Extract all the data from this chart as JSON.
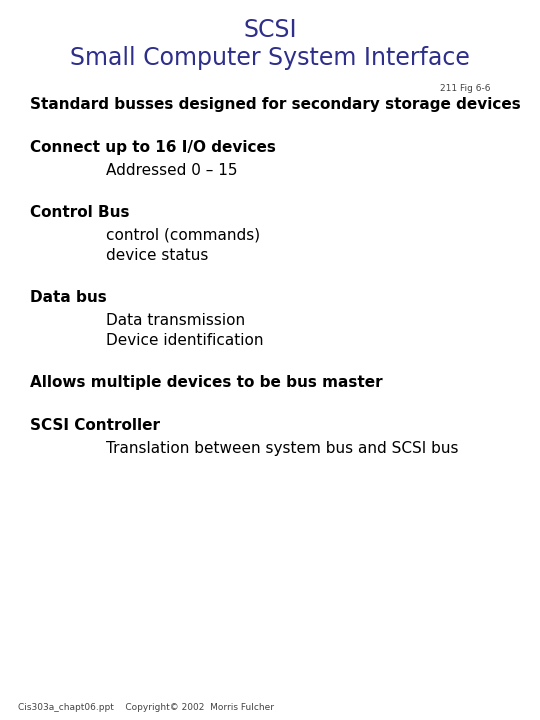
{
  "title_line1": "SCSI",
  "title_line2": "Small Computer System Interface",
  "title_color": "#2E2E8B",
  "title_fontsize": 17,
  "title_fontsize2": 17,
  "fig_ref": "211 Fig 6-6",
  "fig_ref_fontsize": 6.5,
  "fig_ref_color": "#444444",
  "background_color": "#FFFFFF",
  "body_color": "#000000",
  "body_fontsize": 11,
  "footer_text": "Cis303a_chapt06.ppt    Copyright© 2002  Morris Fulcher",
  "footer_fontsize": 6.5,
  "footer_color": "#444444",
  "lines": [
    {
      "text": "Standard busses designed for secondary storage devices",
      "indent": 0.0,
      "size": 11,
      "bold": true
    },
    {
      "text": "",
      "indent": 0.0,
      "size": 11,
      "bold": false
    },
    {
      "text": "Connect up to 16 I/O devices",
      "indent": 0.0,
      "size": 11,
      "bold": true
    },
    {
      "text": "Addressed 0 – 15",
      "indent": 0.14,
      "size": 11,
      "bold": false
    },
    {
      "text": "",
      "indent": 0.0,
      "size": 11,
      "bold": false
    },
    {
      "text": "Control Bus",
      "indent": 0.0,
      "size": 11,
      "bold": true
    },
    {
      "text": "control (commands)",
      "indent": 0.14,
      "size": 11,
      "bold": false
    },
    {
      "text": "device status",
      "indent": 0.14,
      "size": 11,
      "bold": false
    },
    {
      "text": "",
      "indent": 0.0,
      "size": 11,
      "bold": false
    },
    {
      "text": "Data bus",
      "indent": 0.0,
      "size": 11,
      "bold": true
    },
    {
      "text": "Data transmission",
      "indent": 0.14,
      "size": 11,
      "bold": false
    },
    {
      "text": "Device identification",
      "indent": 0.14,
      "size": 11,
      "bold": false
    },
    {
      "text": "",
      "indent": 0.0,
      "size": 11,
      "bold": false
    },
    {
      "text": "Allows multiple devices to be bus master",
      "indent": 0.0,
      "size": 11,
      "bold": true
    },
    {
      "text": "",
      "indent": 0.0,
      "size": 11,
      "bold": false
    },
    {
      "text": "SCSI Controller",
      "indent": 0.0,
      "size": 11,
      "bold": true
    },
    {
      "text": "Translation between system bus and SCSI bus",
      "indent": 0.14,
      "size": 11,
      "bold": false
    }
  ]
}
